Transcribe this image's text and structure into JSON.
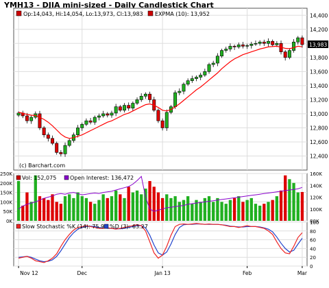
{
  "header": {
    "title": "YMH13 - DJIA mini-sized - Daily Candlestick Chart"
  },
  "chart_data": [
    {
      "type": "candlestick",
      "panel": "price",
      "ohlc_label": "Op:14,043, Hi:14,054, Lo:13,973, Cl:13,983",
      "ema_label": "EXPMA (10): 13,952",
      "watermark": "(c) Barchart.com",
      "last_price_label": "13,983",
      "ylim": [
        12200,
        14500
      ],
      "yticks": [
        12400,
        12600,
        12800,
        13000,
        13200,
        13400,
        13600,
        13800,
        14000,
        14200,
        14400
      ],
      "ytick_labels": [
        "12,400",
        "12,600",
        "12,800",
        "13,000",
        "13,200",
        "13,400",
        "13,600",
        "13,800",
        "14,000",
        "14,200",
        "14,400"
      ],
      "xtick_labels": [
        "Nov 12",
        "Dec",
        "Jan 13",
        "Feb",
        "Mar"
      ],
      "xtick_bars": [
        0,
        15,
        34,
        54,
        67
      ],
      "closes": [
        13010,
        12970,
        12900,
        12950,
        13000,
        12800,
        12700,
        12650,
        12580,
        12450,
        12430,
        12550,
        12620,
        12700,
        12800,
        12850,
        12900,
        12880,
        12950,
        12970,
        13000,
        12980,
        13010,
        13100,
        13050,
        13120,
        13080,
        13150,
        13200,
        13250,
        13280,
        13200,
        13050,
        12900,
        12800,
        13020,
        13100,
        13300,
        13320,
        13420,
        13470,
        13500,
        13520,
        13550,
        13600,
        13700,
        13720,
        13820,
        13900,
        13920,
        13960,
        13950,
        13980,
        13960,
        13970,
        13990,
        14000,
        14020,
        14000,
        14030,
        13980,
        14000,
        13880,
        13800,
        13900,
        14020,
        14080,
        13983
      ],
      "ema": [
        13020,
        13010,
        12990,
        12980,
        12975,
        12950,
        12920,
        12880,
        12830,
        12770,
        12710,
        12670,
        12650,
        12660,
        12680,
        12700,
        12730,
        12760,
        12790,
        12820,
        12850,
        12880,
        12900,
        12930,
        12960,
        12990,
        13010,
        13040,
        13070,
        13100,
        13130,
        13140,
        13120,
        13090,
        13050,
        13040,
        13060,
        13100,
        13140,
        13190,
        13240,
        13290,
        13340,
        13380,
        13430,
        13480,
        13530,
        13580,
        13640,
        13690,
        13740,
        13780,
        13810,
        13840,
        13860,
        13880,
        13900,
        13920,
        13935,
        13950,
        13955,
        13960,
        13945,
        13930,
        13925,
        13940,
        13960,
        13952
      ]
    },
    {
      "type": "bar",
      "panel": "volume",
      "volume_label": "Vol: 152,075",
      "oi_label": "Open Interest: 136,472",
      "ylim_left": [
        0,
        250000
      ],
      "yticks_left_labels": [
        "0K",
        "50K",
        "100K",
        "150K",
        "200K",
        "250K"
      ],
      "ylim_right": [
        80000,
        160000
      ],
      "yticks_right_labels": [
        "80K",
        "100K",
        "120K",
        "140K",
        "160K"
      ],
      "volume": [
        210000,
        80000,
        150000,
        100000,
        240000,
        130000,
        120000,
        110000,
        140000,
        100000,
        90000,
        130000,
        140000,
        120000,
        150000,
        130000,
        120000,
        100000,
        90000,
        110000,
        140000,
        120000,
        130000,
        160000,
        140000,
        120000,
        180000,
        150000,
        160000,
        140000,
        170000,
        210000,
        180000,
        150000,
        120000,
        140000,
        120000,
        130000,
        100000,
        110000,
        130000,
        90000,
        110000,
        100000,
        120000,
        130000,
        100000,
        120000,
        100000,
        90000,
        110000,
        120000,
        130000,
        100000,
        110000,
        120000,
        90000,
        80000,
        90000,
        100000,
        110000,
        130000,
        160000,
        240000,
        220000,
        200000,
        150000,
        152075
      ],
      "open_interest": [
        100000,
        105000,
        108000,
        110000,
        112000,
        115000,
        118000,
        120000,
        122000,
        125000,
        126000,
        125000,
        127000,
        128000,
        126000,
        124000,
        125000,
        126000,
        127000,
        126000,
        128000,
        129000,
        130000,
        132000,
        134000,
        136000,
        138000,
        142000,
        148000,
        155000,
        120000,
        100000,
        96000,
        98000,
        100000,
        102000,
        103000,
        104000,
        105000,
        106000,
        108000,
        109000,
        110000,
        111000,
        112000,
        113000,
        114000,
        115000,
        116000,
        117000,
        118000,
        119000,
        120000,
        121000,
        122000,
        123000,
        124000,
        125000,
        126000,
        127000,
        128000,
        129000,
        130000,
        131000,
        132000,
        133000,
        134000,
        136472
      ]
    },
    {
      "type": "line",
      "panel": "stochastic",
      "k_label": "Slow Stochastic %K (14): 75.90",
      "d_label": "%D (3): 63.27",
      "ylim": [
        0,
        100
      ],
      "ytick_labels": [
        "0",
        "20",
        "40",
        "60",
        "80",
        "100"
      ],
      "k": [
        18,
        20,
        22,
        18,
        12,
        10,
        8,
        12,
        18,
        28,
        45,
        60,
        72,
        82,
        88,
        90,
        92,
        90,
        88,
        86,
        86,
        87,
        86,
        84,
        86,
        88,
        90,
        92,
        94,
        92,
        80,
        55,
        30,
        18,
        25,
        45,
        70,
        90,
        95,
        96,
        95,
        96,
        97,
        96,
        95,
        96,
        95,
        95,
        94,
        92,
        90,
        90,
        88,
        90,
        92,
        90,
        90,
        88,
        86,
        80,
        72,
        55,
        40,
        30,
        28,
        45,
        65,
        75.9
      ],
      "d": [
        20,
        21,
        22,
        20,
        16,
        12,
        10,
        11,
        14,
        22,
        35,
        50,
        65,
        76,
        84,
        88,
        90,
        91,
        90,
        88,
        87,
        86,
        86,
        85,
        85,
        86,
        88,
        90,
        92,
        92,
        87,
        70,
        48,
        30,
        25,
        32,
        50,
        72,
        88,
        94,
        95,
        95,
        96,
        96,
        95,
        95,
        95,
        95,
        94,
        93,
        91,
        90,
        89,
        89,
        90,
        90,
        90,
        89,
        87,
        84,
        78,
        66,
        52,
        40,
        32,
        36,
        50,
        63.27
      ]
    }
  ],
  "colors": {
    "up": "#20b020",
    "down": "#dd0000",
    "ema": "#ff0000",
    "oi": "#8800cc",
    "k": "#ee2222",
    "d": "#2244cc",
    "frame": "#555555",
    "grid": "#dddddd"
  }
}
